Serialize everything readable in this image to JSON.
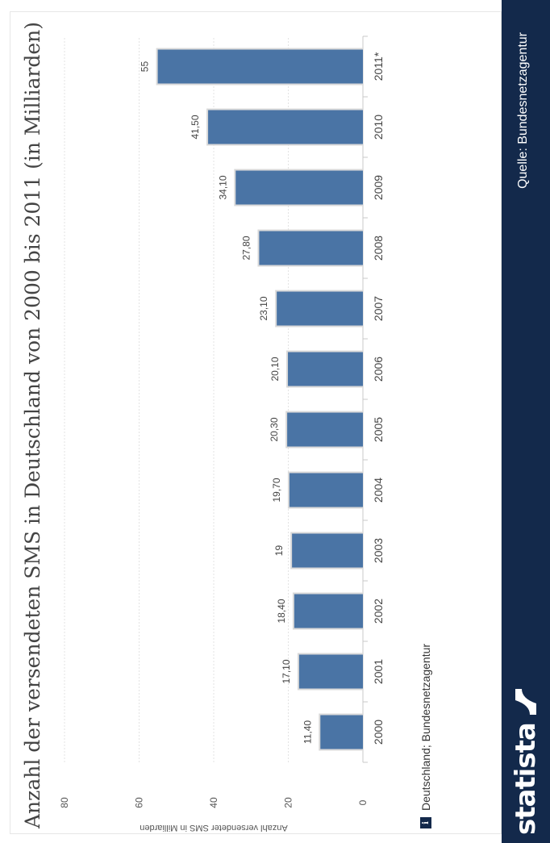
{
  "chart_data": {
    "type": "bar",
    "title": "Anzahl der versendeten SMS in Deutschland von 2000 bis 2011 (in Milliarden)",
    "xlabel": "",
    "ylabel": "Anzahl versendeter SMS in Milliarden",
    "categories": [
      "2000",
      "2001",
      "2002",
      "2003",
      "2004",
      "2005",
      "2006",
      "2007",
      "2008",
      "2009",
      "2010",
      "2011*"
    ],
    "values": [
      11.4,
      17.1,
      18.4,
      19,
      19.7,
      20.3,
      20.1,
      23.1,
      27.8,
      34.1,
      41.5,
      55
    ],
    "value_labels": [
      "11,40",
      "17,10",
      "18,40",
      "19",
      "19,70",
      "20,30",
      "20,10",
      "23,10",
      "27,80",
      "34,10",
      "41,50",
      "55"
    ],
    "yticks": [
      0,
      20,
      40,
      60,
      80
    ],
    "ylim": [
      0,
      80
    ],
    "grid": true,
    "bar_color": "#4a74a5"
  },
  "note": "Deutschland; Bundesnetzagentur",
  "source": "Quelle: Bundesnetzagentur",
  "brand": "statista",
  "colors": {
    "footer": "#13294b",
    "bar": "#4a74a5",
    "text": "#444444"
  }
}
